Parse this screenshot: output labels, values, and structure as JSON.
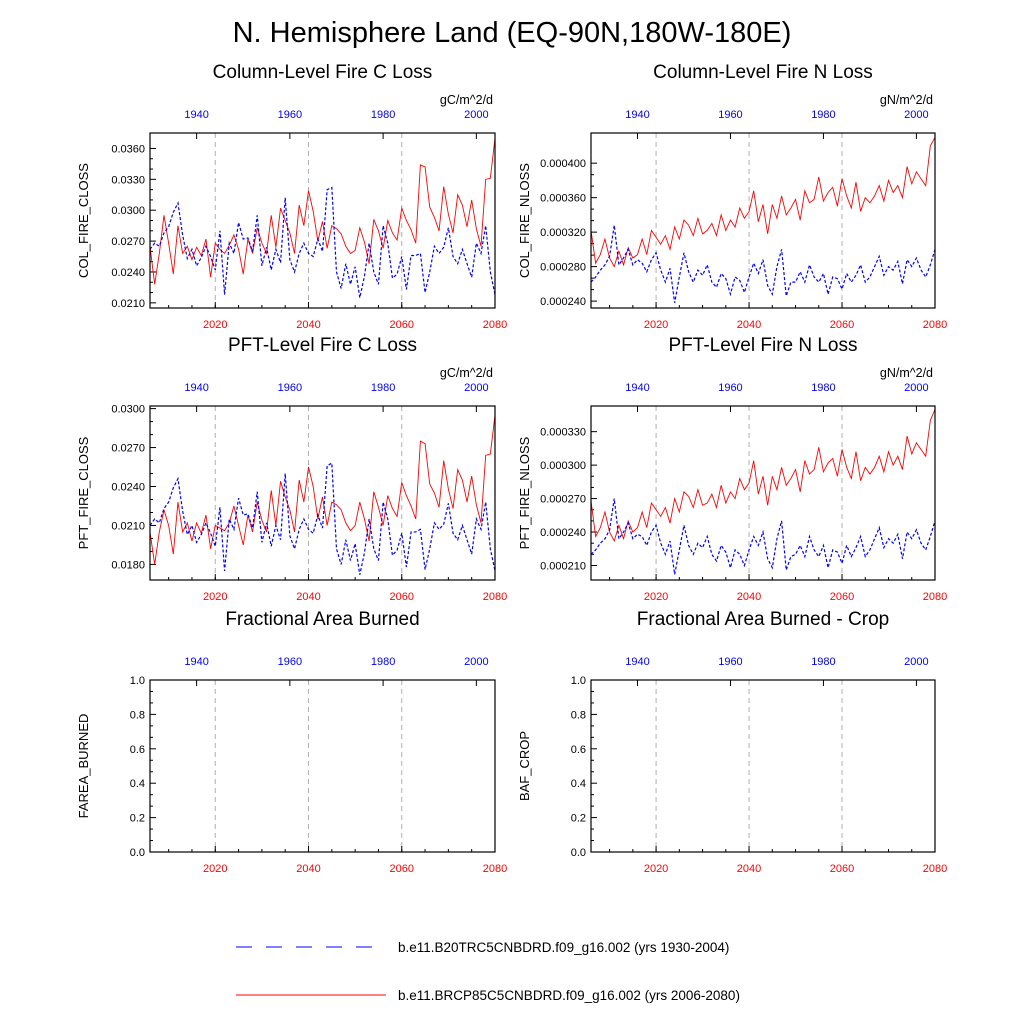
{
  "title": "N. Hemisphere Land (EQ-90N,180W-180E)",
  "colors": {
    "rcp": "#ff0000",
    "hist": "#0000ff",
    "grid": "#b0b0b0",
    "axis": "#000000"
  },
  "legend": [
    {
      "label": "b.e11.B20TRC5CNBDRD.f09_g16.002 (yrs 1930-2004)",
      "color": "#0000ff",
      "style": "dashed"
    },
    {
      "label": "b.e11.BRCP85C5CNBDRD.f09_g16.002 (yrs 2006-2080)",
      "color": "#ff0000",
      "style": "solid"
    }
  ],
  "chart_data": [
    {
      "type": "line",
      "title": "Column-Level Fire C Loss",
      "units": "gC/m^2/d",
      "ylabel": "COL_FIRE_CLOSS",
      "ylim": [
        0.0205,
        0.0375
      ],
      "yticks": [
        "0.0210",
        "0.0240",
        "0.0270",
        "0.0300",
        "0.0330",
        "0.0360"
      ],
      "x_bottom_ticks": [
        "2020",
        "2040",
        "2060",
        "2080"
      ],
      "x_top_ticks": [
        "1940",
        "1960",
        "1980",
        "2000"
      ],
      "x_bottom_range": [
        2006,
        2080
      ],
      "x_top_range": [
        1930,
        2004
      ],
      "series": [
        {
          "name": "b.e11.BRCP85C5CNBDRD.f09_g16.002 (yrs 2006-2080)",
          "axis": "bottom",
          "values": [
            0.0265,
            0.0228,
            0.0258,
            0.0295,
            0.0268,
            0.0238,
            0.0285,
            0.0258,
            0.0265,
            0.0252,
            0.0264,
            0.0256,
            0.0272,
            0.0235,
            0.0268,
            0.0262,
            0.0258,
            0.0266,
            0.0276,
            0.0262,
            0.0238,
            0.0272,
            0.0258,
            0.0283,
            0.0268,
            0.0258,
            0.0295,
            0.0264,
            0.0302,
            0.029,
            0.0278,
            0.0258,
            0.0305,
            0.0285,
            0.0319,
            0.0299,
            0.027,
            0.0289,
            0.0263,
            0.0285,
            0.0282,
            0.0277,
            0.0265,
            0.0258,
            0.0261,
            0.0283,
            0.0269,
            0.0248,
            0.0291,
            0.028,
            0.0263,
            0.029,
            0.0278,
            0.0271,
            0.0302,
            0.029,
            0.0281,
            0.0268,
            0.0344,
            0.0342,
            0.0303,
            0.0293,
            0.028,
            0.0323,
            0.0296,
            0.0278,
            0.0315,
            0.0305,
            0.0284,
            0.031,
            0.0282,
            0.0265,
            0.033,
            0.0331,
            0.037
          ]
        },
        {
          "name": "b.e11.B20TRC5CNBDRD.f09_g16.002 (yrs 1930-2004)",
          "axis": "top",
          "values": [
            0.0262,
            0.0268,
            0.0265,
            0.0278,
            0.0284,
            0.0298,
            0.0307,
            0.0276,
            0.0253,
            0.0262,
            0.0246,
            0.0254,
            0.0265,
            0.0255,
            0.0242,
            0.028,
            0.0218,
            0.0268,
            0.0258,
            0.0288,
            0.0272,
            0.0273,
            0.026,
            0.0295,
            0.0246,
            0.0264,
            0.0242,
            0.0262,
            0.0249,
            0.0312,
            0.0252,
            0.024,
            0.0258,
            0.0268,
            0.0258,
            0.0255,
            0.0272,
            0.026,
            0.032,
            0.0322,
            0.024,
            0.0224,
            0.0248,
            0.0228,
            0.0245,
            0.0215,
            0.0236,
            0.0268,
            0.024,
            0.0228,
            0.0285,
            0.0268,
            0.0234,
            0.0238,
            0.0255,
            0.0223,
            0.0256,
            0.0256,
            0.0258,
            0.022,
            0.024,
            0.0265,
            0.0258,
            0.0264,
            0.0283,
            0.0255,
            0.0248,
            0.0262,
            0.0248,
            0.0235,
            0.0268,
            0.0258,
            0.0285,
            0.024,
            0.0218
          ]
        }
      ]
    },
    {
      "type": "line",
      "title": "Column-Level Fire N Loss",
      "units": "gN/m^2/d",
      "ylabel": "COL_FIRE_NLOSS",
      "ylim": [
        0.000232,
        0.000435
      ],
      "yticks": [
        "0.000240",
        "0.000280",
        "0.000320",
        "0.000360",
        "0.000400"
      ],
      "x_bottom_ticks": [
        "2020",
        "2040",
        "2060",
        "2080"
      ],
      "x_top_ticks": [
        "1940",
        "1960",
        "1980",
        "2000"
      ],
      "x_bottom_range": [
        2006,
        2080
      ],
      "x_top_range": [
        1930,
        2004
      ],
      "series": [
        {
          "name": "b.e11.BRCP85C5CNBDRD.f09_g16.002 (yrs 2006-2080)",
          "axis": "bottom",
          "values": [
            0.000322,
            0.000284,
            0.000294,
            0.000312,
            0.00029,
            0.00028,
            0.000298,
            0.000282,
            0.000302,
            0.00029,
            0.000294,
            0.000312,
            0.000294,
            0.000322,
            0.000314,
            0.000306,
            0.000316,
            0.0003,
            0.000326,
            0.000312,
            0.000334,
            0.000328,
            0.000316,
            0.000336,
            0.000318,
            0.000322,
            0.00033,
            0.000316,
            0.00034,
            0.000322,
            0.000334,
            0.000326,
            0.000348,
            0.000336,
            0.000344,
            0.000368,
            0.000332,
            0.000352,
            0.000318,
            0.000352,
            0.000336,
            0.000362,
            0.00034,
            0.000348,
            0.000358,
            0.000334,
            0.000368,
            0.000354,
            0.000358,
            0.000384,
            0.000356,
            0.000366,
            0.000372,
            0.00035,
            0.000382,
            0.000362,
            0.000348,
            0.000378,
            0.000344,
            0.00036,
            0.000354,
            0.000362,
            0.000374,
            0.000356,
            0.00038,
            0.000366,
            0.000374,
            0.00036,
            0.000396,
            0.000376,
            0.00039,
            0.000382,
            0.000374,
            0.00042,
            0.00043
          ]
        },
        {
          "name": "b.e11.B20TRC5CNBDRD.f09_g16.002 (yrs 1930-2004)",
          "axis": "top",
          "values": [
            0.000262,
            0.000268,
            0.000276,
            0.000282,
            0.000292,
            0.000328,
            0.000282,
            0.00029,
            0.0003,
            0.000282,
            0.000288,
            0.000284,
            0.000274,
            0.000288,
            0.000296,
            0.000276,
            0.000262,
            0.000278,
            0.000238,
            0.000268,
            0.000296,
            0.000274,
            0.000262,
            0.000276,
            0.00027,
            0.000282,
            0.000262,
            0.000256,
            0.000272,
            0.000266,
            0.000248,
            0.000268,
            0.000264,
            0.00025,
            0.000268,
            0.000284,
            0.000272,
            0.000288,
            0.000258,
            0.000248,
            0.00028,
            0.0003,
            0.000246,
            0.000262,
            0.000262,
            0.000274,
            0.000262,
            0.000282,
            0.000268,
            0.000262,
            0.000272,
            0.000248,
            0.000268,
            0.000266,
            0.000254,
            0.000272,
            0.000262,
            0.00027,
            0.000282,
            0.000262,
            0.000268,
            0.00028,
            0.000292,
            0.00027,
            0.00028,
            0.000276,
            0.000286,
            0.00026,
            0.000288,
            0.00028,
            0.00029,
            0.000276,
            0.000268,
            0.000282,
            0.0003
          ]
        }
      ]
    },
    {
      "type": "line",
      "title": "PFT-Level Fire C Loss",
      "units": "gC/m^2/d",
      "ylabel": "PFT_FIRE_CLOSS",
      "ylim": [
        0.0168,
        0.0302
      ],
      "yticks": [
        "0.0180",
        "0.0210",
        "0.0240",
        "0.0270",
        "0.0300"
      ],
      "x_bottom_ticks": [
        "2020",
        "2040",
        "2060",
        "2080"
      ],
      "x_top_ticks": [
        "1940",
        "1960",
        "1980",
        "2000"
      ],
      "x_bottom_range": [
        2006,
        2080
      ],
      "x_top_range": [
        1930,
        2004
      ],
      "series": [
        {
          "name": "b.e11.BRCP85C5CNBDRD.f09_g16.002 (yrs 2006-2080)",
          "axis": "bottom",
          "values": [
            0.0205,
            0.018,
            0.0205,
            0.0222,
            0.021,
            0.0188,
            0.0228,
            0.0205,
            0.0212,
            0.0198,
            0.0212,
            0.0204,
            0.0218,
            0.0192,
            0.021,
            0.0208,
            0.0206,
            0.0212,
            0.0225,
            0.021,
            0.0195,
            0.0218,
            0.0205,
            0.0228,
            0.0214,
            0.0205,
            0.0237,
            0.021,
            0.0244,
            0.0232,
            0.0222,
            0.0205,
            0.0245,
            0.0228,
            0.0255,
            0.024,
            0.0215,
            0.0232,
            0.021,
            0.0228,
            0.0226,
            0.0222,
            0.0212,
            0.0206,
            0.021,
            0.0228,
            0.0215,
            0.0198,
            0.0236,
            0.0224,
            0.021,
            0.0233,
            0.0223,
            0.0217,
            0.0243,
            0.0233,
            0.0225,
            0.0215,
            0.0275,
            0.0273,
            0.0242,
            0.0235,
            0.0224,
            0.026,
            0.0238,
            0.0223,
            0.0253,
            0.0245,
            0.0228,
            0.0248,
            0.0226,
            0.0212,
            0.0264,
            0.0265,
            0.0295
          ]
        },
        {
          "name": "b.e11.B20TRC5CNBDRD.f09_g16.002 (yrs 1930-2004)",
          "axis": "top",
          "values": [
            0.021,
            0.0215,
            0.0212,
            0.0223,
            0.0228,
            0.0239,
            0.0246,
            0.0221,
            0.0203,
            0.021,
            0.0197,
            0.0203,
            0.0212,
            0.0204,
            0.0194,
            0.0224,
            0.0175,
            0.0215,
            0.0207,
            0.0231,
            0.0218,
            0.0219,
            0.0208,
            0.0236,
            0.0197,
            0.0212,
            0.0194,
            0.021,
            0.0199,
            0.025,
            0.0202,
            0.0192,
            0.0207,
            0.0215,
            0.0207,
            0.0204,
            0.0218,
            0.0208,
            0.0256,
            0.0258,
            0.0192,
            0.018,
            0.0199,
            0.0183,
            0.0196,
            0.0172,
            0.0189,
            0.0215,
            0.0192,
            0.0183,
            0.0228,
            0.0215,
            0.0187,
            0.0191,
            0.0204,
            0.0178,
            0.0205,
            0.0205,
            0.0207,
            0.0176,
            0.0192,
            0.0212,
            0.0207,
            0.0211,
            0.0227,
            0.0204,
            0.0199,
            0.021,
            0.0199,
            0.0188,
            0.0215,
            0.0207,
            0.0228,
            0.0192,
            0.0175
          ]
        }
      ]
    },
    {
      "type": "line",
      "title": "PFT-Level Fire N Loss",
      "units": "gN/m^2/d",
      "ylabel": "PFT_FIRE_NLOSS",
      "ylim": [
        0.000197,
        0.000353
      ],
      "yticks": [
        "0.000210",
        "0.000240",
        "0.000270",
        "0.000300",
        "0.000330"
      ],
      "x_bottom_ticks": [
        "2020",
        "2040",
        "2060",
        "2080"
      ],
      "x_top_ticks": [
        "1940",
        "1960",
        "1980",
        "2000"
      ],
      "x_bottom_range": [
        2006,
        2080
      ],
      "x_top_range": [
        1930,
        2004
      ],
      "series": [
        {
          "name": "b.e11.BRCP85C5CNBDRD.f09_g16.002 (yrs 2006-2080)",
          "axis": "bottom",
          "values": [
            0.000268,
            0.000236,
            0.000244,
            0.000258,
            0.00024,
            0.000232,
            0.000246,
            0.000234,
            0.00025,
            0.00024,
            0.000244,
            0.000258,
            0.000244,
            0.000266,
            0.00026,
            0.000254,
            0.000262,
            0.000248,
            0.00027,
            0.000258,
            0.000276,
            0.000272,
            0.000262,
            0.000278,
            0.000264,
            0.000266,
            0.000274,
            0.000262,
            0.000282,
            0.000266,
            0.000276,
            0.00027,
            0.000288,
            0.000278,
            0.000284,
            0.000304,
            0.000274,
            0.00029,
            0.000264,
            0.00029,
            0.000278,
            0.000298,
            0.000282,
            0.000288,
            0.000296,
            0.000276,
            0.000304,
            0.000292,
            0.000296,
            0.000316,
            0.000294,
            0.000302,
            0.000306,
            0.00029,
            0.000314,
            0.000298,
            0.000288,
            0.000312,
            0.000286,
            0.000298,
            0.000292,
            0.000298,
            0.000308,
            0.000294,
            0.000312,
            0.0003,
            0.000308,
            0.000296,
            0.000326,
            0.00031,
            0.00032,
            0.000314,
            0.000308,
            0.00034,
            0.00035
          ]
        },
        {
          "name": "b.e11.B20TRC5CNBDRD.f09_g16.002 (yrs 1930-2004)",
          "axis": "top",
          "values": [
            0.00022,
            0.000224,
            0.00023,
            0.000234,
            0.000242,
            0.00027,
            0.000234,
            0.00024,
            0.000248,
            0.000234,
            0.000238,
            0.000236,
            0.000228,
            0.00024,
            0.000246,
            0.00023,
            0.00022,
            0.000232,
            0.000202,
            0.000224,
            0.000246,
            0.000228,
            0.00022,
            0.00023,
            0.000226,
            0.000236,
            0.00022,
            0.000214,
            0.000228,
            0.000222,
            0.000208,
            0.000224,
            0.00022,
            0.00021,
            0.000224,
            0.000236,
            0.000228,
            0.00024,
            0.000216,
            0.000208,
            0.000234,
            0.00025,
            0.000206,
            0.000218,
            0.00022,
            0.000228,
            0.000218,
            0.000236,
            0.000224,
            0.000218,
            0.000228,
            0.000208,
            0.000224,
            0.000222,
            0.000212,
            0.000228,
            0.000218,
            0.000226,
            0.000236,
            0.000218,
            0.000224,
            0.000234,
            0.000244,
            0.000226,
            0.000234,
            0.00023,
            0.000238,
            0.000216,
            0.00024,
            0.000234,
            0.000242,
            0.00023,
            0.000224,
            0.000236,
            0.00025
          ]
        }
      ]
    },
    {
      "type": "line",
      "title": "Fractional Area Burned",
      "units": "",
      "ylabel": "FAREA_BURNED",
      "ylim": [
        0.0,
        1.0
      ],
      "yticks": [
        "0.0",
        "0.2",
        "0.4",
        "0.6",
        "0.8",
        "1.0"
      ],
      "x_bottom_ticks": [
        "2020",
        "2040",
        "2060",
        "2080"
      ],
      "x_top_ticks": [
        "1940",
        "1960",
        "1980",
        "2000"
      ],
      "x_bottom_range": [
        2006,
        2080
      ],
      "x_top_range": [
        1930,
        2004
      ],
      "series": []
    },
    {
      "type": "line",
      "title": "Fractional Area Burned - Crop",
      "units": "",
      "ylabel": "BAF_CROP",
      "ylim": [
        0.0,
        1.0
      ],
      "yticks": [
        "0.0",
        "0.2",
        "0.4",
        "0.6",
        "0.8",
        "1.0"
      ],
      "x_bottom_ticks": [
        "2020",
        "2040",
        "2060",
        "2080"
      ],
      "x_top_ticks": [
        "1940",
        "1960",
        "1980",
        "2000"
      ],
      "x_bottom_range": [
        2006,
        2080
      ],
      "x_top_range": [
        1930,
        2004
      ],
      "series": []
    }
  ]
}
